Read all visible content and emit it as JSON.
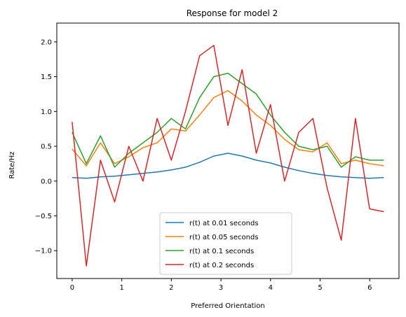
{
  "chart_data": {
    "type": "line",
    "title": "Response for model 2",
    "xlabel": "Preferred Orientation",
    "ylabel": "Rate/Hz",
    "xlim": [
      -0.31,
      6.59
    ],
    "ylim": [
      -1.4,
      2.27
    ],
    "xticks": [
      0,
      1,
      2,
      3,
      4,
      5,
      6
    ],
    "yticks": [
      -1.0,
      -0.5,
      0.0,
      0.5,
      1.0,
      1.5,
      2.0
    ],
    "ytick_labels": [
      "−1.0",
      "−0.5",
      "0.0",
      "0.5",
      "1.0",
      "1.5",
      "2.0"
    ],
    "grid": false,
    "legend_position": "lower-center",
    "x": [
      0,
      0.2856,
      0.5712,
      0.8568,
      1.1424,
      1.428,
      1.7136,
      1.9992,
      2.2848,
      2.5704,
      2.856,
      3.1416,
      3.4272,
      3.7128,
      3.9984,
      4.284,
      4.5696,
      4.8552,
      5.1408,
      5.4264,
      5.712,
      5.9976,
      6.2832
    ],
    "series": [
      {
        "name": "r(t) at 0.01 seconds",
        "color": "#1f77b4",
        "values": [
          0.05,
          0.04,
          0.06,
          0.07,
          0.09,
          0.11,
          0.13,
          0.16,
          0.2,
          0.27,
          0.36,
          0.4,
          0.36,
          0.3,
          0.26,
          0.2,
          0.15,
          0.11,
          0.08,
          0.06,
          0.05,
          0.04,
          0.05
        ]
      },
      {
        "name": "r(t) at 0.05 seconds",
        "color": "#ff7f0e",
        "values": [
          0.46,
          0.22,
          0.55,
          0.25,
          0.35,
          0.48,
          0.55,
          0.75,
          0.72,
          0.95,
          1.2,
          1.3,
          1.15,
          0.95,
          0.8,
          0.6,
          0.45,
          0.42,
          0.55,
          0.25,
          0.3,
          0.25,
          0.22
        ]
      },
      {
        "name": "r(t) at 0.1 seconds",
        "color": "#2ca02c",
        "values": [
          0.7,
          0.25,
          0.65,
          0.2,
          0.4,
          0.55,
          0.7,
          0.9,
          0.75,
          1.2,
          1.5,
          1.55,
          1.4,
          1.25,
          0.95,
          0.7,
          0.5,
          0.45,
          0.5,
          0.2,
          0.35,
          0.3,
          0.3
        ]
      },
      {
        "name": "r(t) at 0.2 seconds",
        "color": "#d62728",
        "values": [
          0.85,
          -1.22,
          0.3,
          -0.3,
          0.5,
          0.0,
          0.9,
          0.3,
          1.0,
          1.8,
          1.95,
          0.8,
          1.6,
          0.4,
          1.1,
          0.0,
          0.7,
          0.9,
          -0.1,
          -0.85,
          0.9,
          -0.4,
          -0.44
        ]
      }
    ]
  }
}
